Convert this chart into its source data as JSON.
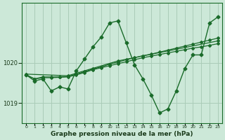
{
  "xlabel": "Graphe pression niveau de la mer (hPa)",
  "ylabel": "",
  "bg_color": "#cce8d8",
  "grid_color": "#aaccb8",
  "line_color": "#1a6b2a",
  "x": [
    0,
    1,
    2,
    3,
    4,
    5,
    6,
    7,
    8,
    9,
    10,
    11,
    12,
    13,
    14,
    15,
    16,
    17,
    18,
    19,
    20,
    21,
    22,
    23
  ],
  "line1": [
    1019.7,
    1019.55,
    1019.6,
    1019.3,
    1019.4,
    1019.35,
    1019.8,
    1020.1,
    1020.4,
    1020.65,
    1021.0,
    1021.05,
    1020.5,
    1019.95,
    1019.6,
    1019.2,
    1018.75,
    1018.85,
    1019.3,
    1019.85,
    1020.2,
    1020.2,
    1021.0,
    1021.15
  ],
  "line2": [
    1019.7,
    1019.6,
    1019.65,
    1019.65,
    1019.65,
    1019.66,
    1019.72,
    1019.78,
    1019.85,
    1019.9,
    1019.97,
    1020.02,
    1020.08,
    1020.13,
    1020.18,
    1020.22,
    1020.27,
    1020.32,
    1020.37,
    1020.42,
    1020.47,
    1020.52,
    1020.57,
    1020.62
  ],
  "line3": [
    1019.7,
    1019.6,
    1019.63,
    1019.63,
    1019.64,
    1019.65,
    1019.7,
    1019.76,
    1019.83,
    1019.88,
    1019.93,
    1019.98,
    1020.03,
    1020.08,
    1020.13,
    1020.17,
    1020.21,
    1020.25,
    1020.29,
    1020.33,
    1020.37,
    1020.4,
    1020.44,
    1020.48
  ],
  "line4_x": [
    0,
    5,
    11,
    23
  ],
  "line4": [
    1019.72,
    1019.68,
    1020.05,
    1020.55
  ],
  "ylim": [
    1018.5,
    1021.5
  ],
  "yticks": [
    1019,
    1020
  ],
  "xticks": [
    0,
    1,
    2,
    3,
    4,
    5,
    6,
    7,
    8,
    9,
    10,
    11,
    12,
    13,
    14,
    15,
    16,
    17,
    18,
    19,
    20,
    21,
    22,
    23
  ]
}
